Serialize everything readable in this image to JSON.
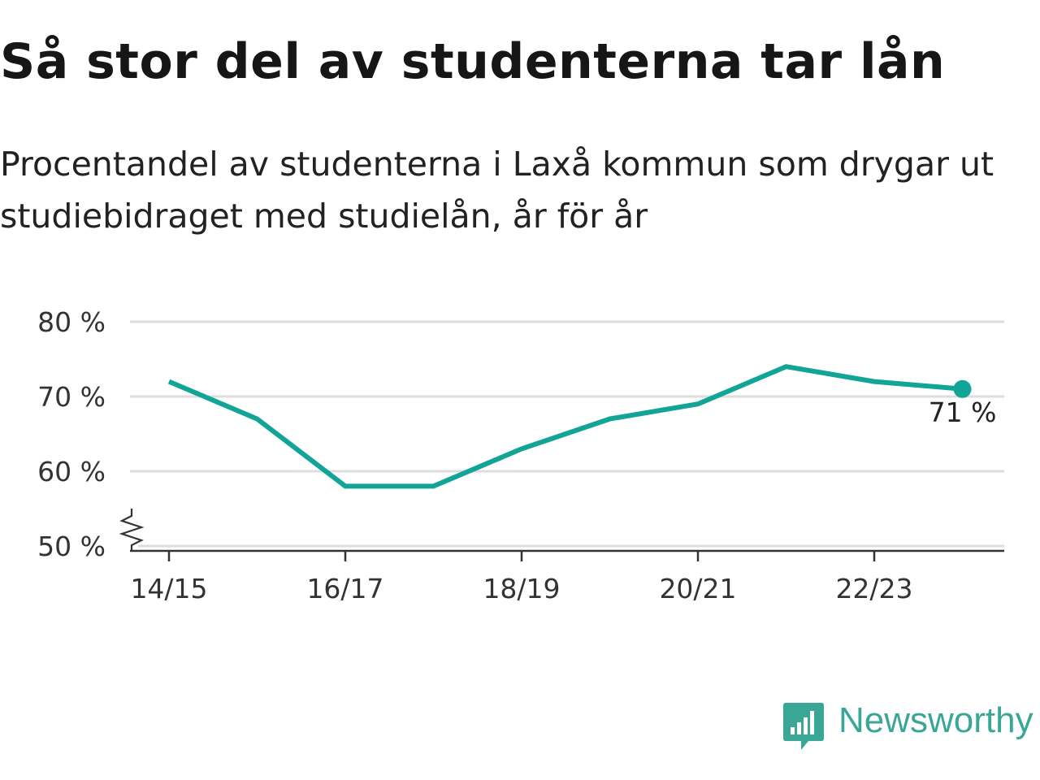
{
  "title": "Så stor del av studenterna tar lån",
  "subtitle": "Procentandel av studenterna i Laxå kommun som drygar ut studiebidraget med studielån, år för år",
  "brand": {
    "name": "Newsworthy",
    "icon": "newsworthy-logo-icon",
    "color": "#3aa796"
  },
  "chart_data": {
    "type": "line",
    "title": "Så stor del av studenterna tar lån",
    "subtitle": "Procentandel av studenterna i Laxå kommun som drygar ut studiebidraget med studielån, år för år",
    "categories": [
      "14/15",
      "15/16",
      "16/17",
      "17/18",
      "18/19",
      "19/20",
      "20/21",
      "21/22",
      "22/23",
      "23/24"
    ],
    "x_tick_labels": [
      "14/15",
      "16/17",
      "18/19",
      "20/21",
      "22/23"
    ],
    "series": [
      {
        "values": [
          72,
          67,
          58,
          58,
          63,
          67,
          69,
          74,
          72,
          71
        ],
        "color": "#12a497"
      }
    ],
    "ylim": [
      50,
      80
    ],
    "y_ticks": [
      50,
      60,
      70,
      80
    ],
    "y_tick_labels": [
      "50 %",
      "60 %",
      "70 %",
      "80 %"
    ],
    "y_axis_break": true,
    "end_label": "71 %",
    "grid": true,
    "gridline_color": "#dddddd",
    "axis_color": "#333333"
  }
}
